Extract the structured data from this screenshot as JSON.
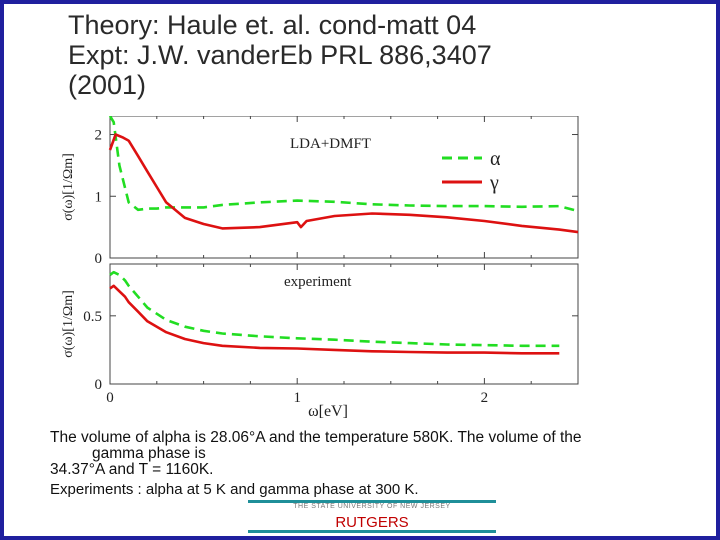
{
  "slide": {
    "title_lines": [
      "Theory: Haule et. al. cond-matt 04",
      "Expt: J.W. vanderEb PRL 886,3407",
      "(2001)"
    ],
    "body_lines": [
      "The volume of  alpha is 28.06°A  and the temperature  580K. The volume of the",
      "gamma  phase is",
      "34.37°A and  T = 1160K.",
      "Experiments : alpha    at 5 K and gamma phase  at 300 K."
    ],
    "footer": {
      "small_text": "THE STATE UNIVERSITY OF NEW JERSEY",
      "brand": "RUTGERS"
    }
  },
  "colors": {
    "frame": "#1f1f9e",
    "alpha": "#22dd22",
    "gamma": "#dd1111",
    "footer_line": "#1f8f99"
  },
  "chart_data": [
    {
      "type": "line",
      "panel_label": "LDA+DMFT",
      "ylabel": "σ(ω)[1/Ωm]",
      "xlim": [
        0,
        2.5
      ],
      "ylim": [
        0,
        2.3
      ],
      "yticks": [
        0,
        1,
        2
      ],
      "legend_position": "top-right",
      "series": [
        {
          "name": "α",
          "style": "dashed",
          "x": [
            0.0,
            0.02,
            0.05,
            0.1,
            0.15,
            0.2,
            0.25,
            0.3,
            0.4,
            0.5,
            0.6,
            0.8,
            1.0,
            1.2,
            1.4,
            1.6,
            1.8,
            2.0,
            2.2,
            2.4,
            2.5
          ],
          "y": [
            2.3,
            2.2,
            1.5,
            0.9,
            0.78,
            0.8,
            0.8,
            0.82,
            0.82,
            0.82,
            0.86,
            0.9,
            0.93,
            0.91,
            0.87,
            0.85,
            0.84,
            0.84,
            0.83,
            0.84,
            0.76
          ]
        },
        {
          "name": "γ",
          "style": "solid",
          "x": [
            0.0,
            0.03,
            0.07,
            0.1,
            0.15,
            0.2,
            0.25,
            0.3,
            0.4,
            0.5,
            0.6,
            0.8,
            1.0,
            1.02,
            1.05,
            1.2,
            1.4,
            1.6,
            1.8,
            2.0,
            2.2,
            2.4,
            2.5
          ],
          "y": [
            1.75,
            2.0,
            1.95,
            1.9,
            1.65,
            1.4,
            1.15,
            0.9,
            0.65,
            0.55,
            0.48,
            0.5,
            0.58,
            0.5,
            0.6,
            0.68,
            0.72,
            0.7,
            0.66,
            0.6,
            0.52,
            0.46,
            0.42
          ]
        }
      ]
    },
    {
      "type": "line",
      "panel_label": "experiment",
      "xlabel": "ω[eV]",
      "ylabel": "σ(ω)[1/Ωm]",
      "xlim": [
        0,
        2.5
      ],
      "ylim": [
        0,
        0.88
      ],
      "yticks": [
        0,
        0.5
      ],
      "xticks": [
        0,
        1,
        2
      ],
      "series": [
        {
          "name": "α",
          "style": "dashed",
          "x": [
            0.0,
            0.02,
            0.05,
            0.08,
            0.1,
            0.15,
            0.2,
            0.3,
            0.4,
            0.5,
            0.6,
            0.8,
            1.0,
            1.2,
            1.4,
            1.6,
            1.8,
            2.0,
            2.2,
            2.4
          ],
          "y": [
            0.8,
            0.82,
            0.8,
            0.76,
            0.72,
            0.64,
            0.56,
            0.47,
            0.42,
            0.39,
            0.37,
            0.35,
            0.335,
            0.325,
            0.31,
            0.3,
            0.29,
            0.285,
            0.28,
            0.28
          ]
        },
        {
          "name": "γ",
          "style": "solid",
          "x": [
            0.0,
            0.02,
            0.05,
            0.08,
            0.1,
            0.15,
            0.2,
            0.3,
            0.4,
            0.5,
            0.6,
            0.8,
            1.0,
            1.2,
            1.4,
            1.6,
            1.8,
            2.0,
            2.2,
            2.4
          ],
          "y": [
            0.7,
            0.72,
            0.68,
            0.64,
            0.6,
            0.53,
            0.46,
            0.38,
            0.33,
            0.3,
            0.28,
            0.265,
            0.26,
            0.25,
            0.24,
            0.235,
            0.23,
            0.23,
            0.225,
            0.225
          ]
        }
      ]
    }
  ]
}
